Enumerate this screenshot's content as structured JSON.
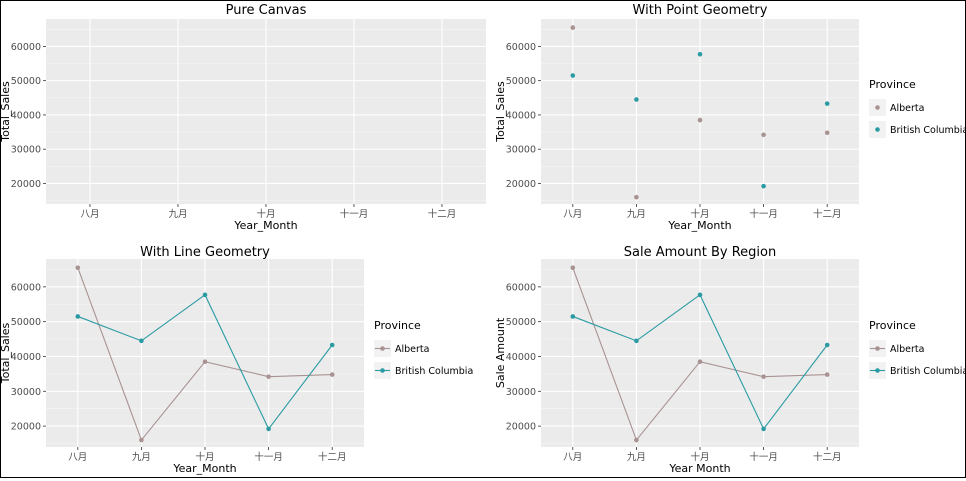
{
  "colors": {
    "panel": "#ebebeb",
    "grid_major": "#ffffff",
    "grid_minor": "#f5f5f5",
    "alberta": "#a89392",
    "british_columbia": "#2a9ba3"
  },
  "chart_data": [
    {
      "type": "scatter",
      "title": "Pure Canvas",
      "xlabel": "Year_Month",
      "ylabel": "Total_Sales",
      "categories": [
        "八月",
        "九月",
        "十月",
        "十一月",
        "十二月"
      ],
      "yticks": [
        20000,
        30000,
        40000,
        50000,
        60000
      ],
      "ylim": [
        14000,
        68000
      ],
      "grid": true,
      "series": []
    },
    {
      "type": "scatter",
      "title": "With Point Geometry",
      "xlabel": "Year_Month",
      "ylabel": "Total_Sales",
      "categories": [
        "八月",
        "九月",
        "十月",
        "十一月",
        "十二月"
      ],
      "yticks": [
        20000,
        30000,
        40000,
        50000,
        60000
      ],
      "ylim": [
        14000,
        68000
      ],
      "grid": true,
      "legend": {
        "title": "Province",
        "placement": "right"
      },
      "series": [
        {
          "name": "Alberta",
          "values": [
            65500,
            16000,
            38500,
            34200,
            34800
          ]
        },
        {
          "name": "British Columbia",
          "values": [
            51500,
            44500,
            57700,
            19200,
            43300
          ]
        }
      ]
    },
    {
      "type": "line",
      "title": "With Line Geometry",
      "xlabel": "Year_Month",
      "ylabel": "Total_Sales",
      "categories": [
        "八月",
        "九月",
        "十月",
        "十一月",
        "十二月"
      ],
      "yticks": [
        20000,
        30000,
        40000,
        50000,
        60000
      ],
      "ylim": [
        14000,
        68000
      ],
      "grid": true,
      "legend": {
        "title": "Province",
        "placement": "right"
      },
      "series": [
        {
          "name": "Alberta",
          "values": [
            65500,
            16000,
            38500,
            34200,
            34800
          ]
        },
        {
          "name": "British Columbia",
          "values": [
            51500,
            44500,
            57700,
            19200,
            43300
          ]
        }
      ]
    },
    {
      "type": "line",
      "title": "Sale Amount By Region",
      "xlabel": "Year Month",
      "ylabel": "Sale Amount",
      "categories": [
        "八月",
        "九月",
        "十月",
        "十一月",
        "十二月"
      ],
      "yticks": [
        20000,
        30000,
        40000,
        50000,
        60000
      ],
      "ylim": [
        14000,
        68000
      ],
      "grid": true,
      "legend": {
        "title": "Province",
        "placement": "right"
      },
      "series": [
        {
          "name": "Alberta",
          "values": [
            65500,
            16000,
            38500,
            34200,
            34800
          ]
        },
        {
          "name": "British Columbia",
          "values": [
            51500,
            44500,
            57700,
            19200,
            43300
          ]
        }
      ]
    }
  ]
}
